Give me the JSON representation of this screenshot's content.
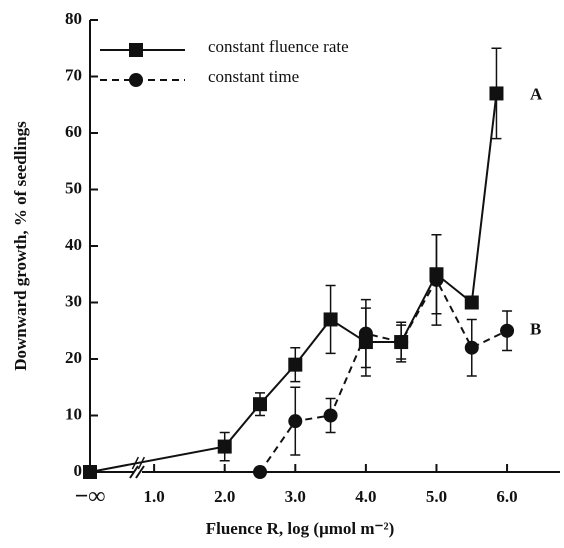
{
  "chart_data": {
    "type": "line",
    "ylabel": "Downward growth, % of seedlings",
    "xlabel": "Fluence R, log (μmol m⁻²)",
    "xlim": [
      0.8,
      6.75
    ],
    "ylim": [
      0,
      80
    ],
    "xticks": [
      "−∞",
      "1.0",
      "2.0",
      "3.0",
      "4.0",
      "5.0",
      "6.0"
    ],
    "yticks": [
      0,
      10,
      20,
      30,
      40,
      50,
      60,
      70,
      80
    ],
    "legend": "upper left",
    "series": [
      {
        "name": "constant fluence rate",
        "marker": "square",
        "dash": false,
        "color": "#111",
        "annotation": "A",
        "x": [
          "−∞",
          2.0,
          2.5,
          3.0,
          3.5,
          4.0,
          4.5,
          5.0,
          5.5,
          5.85
        ],
        "values": [
          0,
          4.5,
          12,
          19,
          27,
          23,
          23,
          35,
          30,
          67
        ],
        "errors": [
          0,
          2.5,
          2,
          3,
          6,
          6,
          3.5,
          7,
          0,
          8
        ]
      },
      {
        "name": "constant time",
        "marker": "circle",
        "dash": true,
        "color": "#111",
        "annotation": "B",
        "x": [
          2.5,
          3.0,
          3.5,
          4.0,
          4.5,
          5.0,
          5.5,
          6.0
        ],
        "values": [
          0,
          9,
          10,
          24.5,
          23,
          34,
          22,
          25
        ],
        "errors": [
          0,
          6,
          3,
          6,
          3,
          8,
          5,
          3.5
        ]
      }
    ]
  }
}
